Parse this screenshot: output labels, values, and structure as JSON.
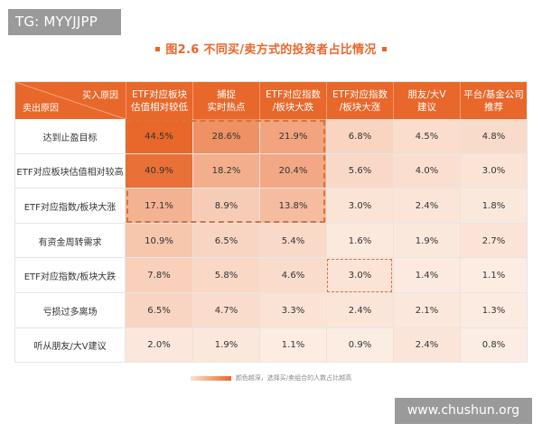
{
  "watermark_top": "TG: MYYJJPP",
  "watermark_bottom": "www.chushun.org",
  "title": "图2.6 不同买/卖方式的投资者占比情况",
  "legend_note": "颜色越深，选择买/卖组合的人数占比越高",
  "colors": {
    "accent": "#e8672a",
    "cell_light": "#fdf1ea",
    "cell_dark": "#e8672a"
  },
  "chart_data": {
    "type": "heatmap",
    "title": "图2.6 不同买/卖方式的投资者占比情况",
    "corner_column_label": "买入原因",
    "corner_row_label": "卖出原因",
    "columns": [
      "ETF对应板块\n估值相对较低",
      "捕捉\n实时热点",
      "ETF对应指数\n/板块大跌",
      "ETF对应指数\n/板块大涨",
      "朋友/大V\n建议",
      "平台/基金公司\n推荐"
    ],
    "rows": [
      "达到止盈目标",
      "ETF对应板块估值相对较高",
      "ETF对应指数/板块大涨",
      "有资金周转需求",
      "ETF对应指数/板块大跌",
      "亏损过多离场",
      "听从朋友/大V建议"
    ],
    "values": [
      [
        44.5,
        28.6,
        21.9,
        6.8,
        4.5,
        4.8
      ],
      [
        40.9,
        18.2,
        20.4,
        5.6,
        4.0,
        3.0
      ],
      [
        17.1,
        8.9,
        13.8,
        3.0,
        2.4,
        1.8
      ],
      [
        10.9,
        6.5,
        5.4,
        1.6,
        1.9,
        2.7
      ],
      [
        7.8,
        5.8,
        4.6,
        3.0,
        1.4,
        1.1
      ],
      [
        6.5,
        4.7,
        3.3,
        2.4,
        2.1,
        1.3
      ],
      [
        2.0,
        1.9,
        1.1,
        0.9,
        2.4,
        0.8
      ]
    ],
    "value_suffix": "%",
    "highlight_groups": [
      {
        "rows": [
          0,
          2
        ],
        "cols": [
          0,
          2
        ],
        "style": "dashed"
      },
      {
        "rows": [
          4,
          4
        ],
        "cols": [
          3,
          3
        ],
        "style": "dashed"
      }
    ]
  }
}
